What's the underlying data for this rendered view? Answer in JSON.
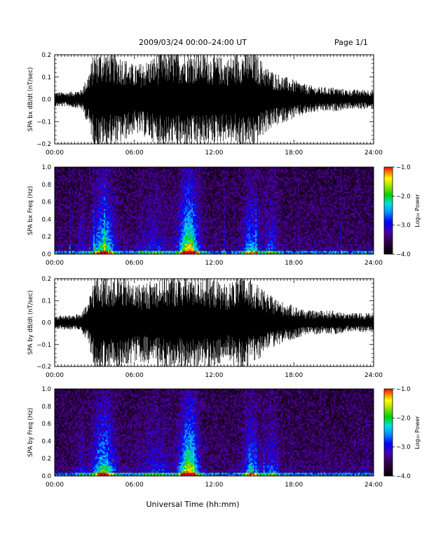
{
  "header": {
    "title": "2009/03/24  00:00–24:00 UT",
    "page": "Page 1/1"
  },
  "xaxis": {
    "ticks": [
      "00:00",
      "06:00",
      "12:00",
      "18:00",
      "24:00"
    ],
    "label": "Universal Time (hh:mm)",
    "range_hours": [
      0,
      24
    ]
  },
  "colorbar": {
    "label": "Log₁₀ Power",
    "ticks": [
      "−1.0",
      "−2.0",
      "−3.0",
      "−4.0"
    ],
    "range": [
      -4.0,
      -1.0
    ]
  },
  "chart_data": [
    {
      "type": "line",
      "ylabel": "SPA bx dB/dt (nT/sec)",
      "ylim": [
        -0.2,
        0.2
      ],
      "yticks": [
        "0.2",
        "0.1",
        "0.0",
        "−0.1",
        "−0.2"
      ],
      "envelope": {
        "x_hours": [
          0,
          1,
          2,
          2.5,
          3,
          3.5,
          4,
          5,
          6,
          7,
          8,
          9,
          10,
          11,
          12,
          13,
          14,
          15,
          16,
          17,
          18,
          19,
          20,
          21,
          22,
          23,
          24
        ],
        "amplitude": [
          0.03,
          0.03,
          0.04,
          0.1,
          0.2,
          0.2,
          0.2,
          0.18,
          0.14,
          0.16,
          0.2,
          0.2,
          0.2,
          0.2,
          0.18,
          0.17,
          0.2,
          0.2,
          0.13,
          0.1,
          0.08,
          0.06,
          0.05,
          0.05,
          0.04,
          0.04,
          0.04
        ]
      }
    },
    {
      "type": "heatmap",
      "ylabel": "SPA bx Freq (Hz)",
      "ylim": [
        0.0,
        1.0
      ],
      "yticks": [
        "1.0",
        "0.8",
        "0.6",
        "0.4",
        "0.2",
        "0.0"
      ],
      "zlim": [
        -4.0,
        -1.0
      ]
    },
    {
      "type": "line",
      "ylabel": "SPA by dB/dt (nT/sec)",
      "ylim": [
        -0.2,
        0.2
      ],
      "yticks": [
        "0.2",
        "0.1",
        "0.0",
        "−0.1",
        "−0.2"
      ],
      "envelope": {
        "x_hours": [
          0,
          1,
          2,
          2.5,
          3,
          3.5,
          4,
          5,
          6,
          7,
          8,
          9,
          10,
          11,
          12,
          13,
          14,
          15,
          16,
          17,
          18,
          19,
          20,
          21,
          22,
          23,
          24
        ],
        "amplitude": [
          0.03,
          0.03,
          0.04,
          0.08,
          0.2,
          0.2,
          0.2,
          0.2,
          0.16,
          0.17,
          0.2,
          0.2,
          0.2,
          0.2,
          0.18,
          0.16,
          0.2,
          0.17,
          0.12,
          0.09,
          0.07,
          0.05,
          0.05,
          0.05,
          0.04,
          0.04,
          0.04
        ]
      }
    },
    {
      "type": "heatmap",
      "ylabel": "SPA by Freq (Hz)",
      "ylim": [
        0.0,
        1.0
      ],
      "yticks": [
        "1.0",
        "0.8",
        "0.6",
        "0.4",
        "0.2",
        "0.0"
      ],
      "zlim": [
        -4.0,
        -1.0
      ]
    }
  ]
}
